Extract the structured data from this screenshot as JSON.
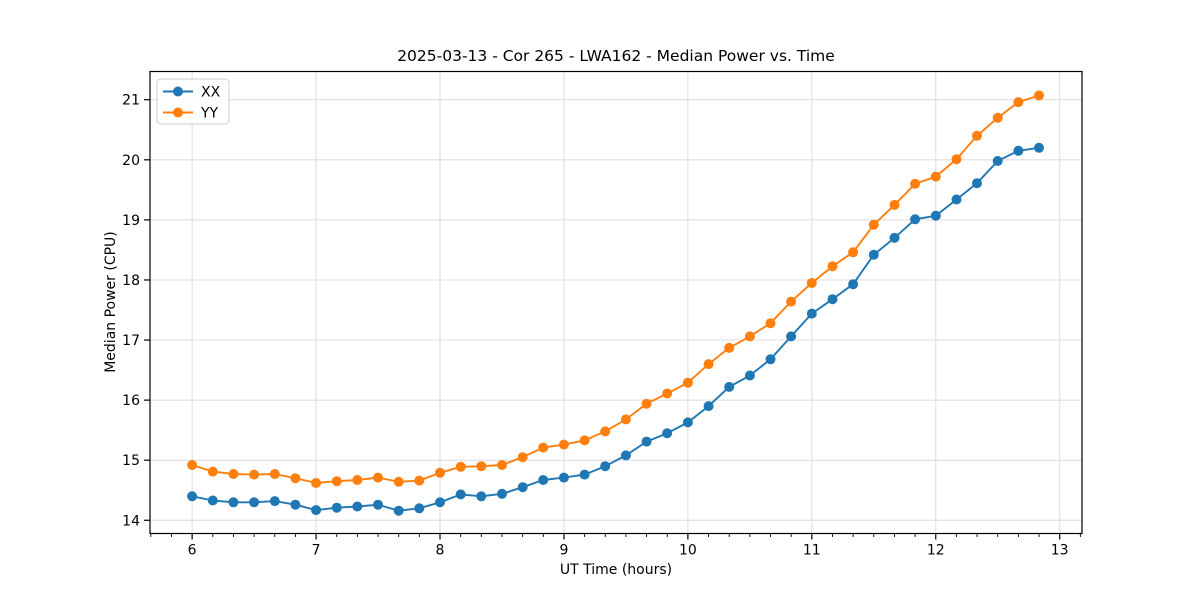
{
  "chart_data": {
    "type": "line",
    "title": "2025-03-13 - Cor 265 - LWA162 - Median Power vs. Time",
    "xlabel": "UT Time (hours)",
    "ylabel": "Median Power (CPU)",
    "xlim": [
      5.66,
      13.18
    ],
    "ylim": [
      13.78,
      21.47
    ],
    "xticks": [
      6,
      7,
      8,
      9,
      10,
      11,
      12,
      13
    ],
    "yticks": [
      14,
      15,
      16,
      17,
      18,
      19,
      20,
      21
    ],
    "x_minor_interval": 0.166667,
    "grid": true,
    "grid_color": "#dcdcdc",
    "legend_position": "upper left",
    "marker": "o",
    "x": [
      6.0,
      6.167,
      6.333,
      6.5,
      6.667,
      6.833,
      7.0,
      7.167,
      7.333,
      7.5,
      7.667,
      7.833,
      8.0,
      8.167,
      8.333,
      8.5,
      8.667,
      8.833,
      9.0,
      9.167,
      9.333,
      9.5,
      9.667,
      9.833,
      10.0,
      10.167,
      10.333,
      10.5,
      10.667,
      10.833,
      11.0,
      11.167,
      11.333,
      11.5,
      11.667,
      11.833,
      12.0,
      12.167,
      12.333,
      12.5,
      12.667,
      12.833
    ],
    "series": [
      {
        "name": "XX",
        "color": "#1f77b4",
        "values": [
          14.4,
          14.33,
          14.3,
          14.3,
          14.32,
          14.26,
          14.17,
          14.21,
          14.23,
          14.26,
          14.16,
          14.2,
          14.3,
          14.43,
          14.4,
          14.44,
          14.55,
          14.67,
          14.71,
          14.76,
          14.9,
          15.08,
          15.31,
          15.45,
          15.63,
          15.9,
          16.22,
          16.41,
          16.68,
          17.06,
          17.44,
          17.68,
          17.93,
          18.42,
          18.7,
          19.01,
          19.07,
          19.34,
          19.61,
          19.98,
          20.15,
          20.2
        ]
      },
      {
        "name": "YY",
        "color": "#ff7f0e",
        "values": [
          14.92,
          14.81,
          14.77,
          14.76,
          14.77,
          14.7,
          14.62,
          14.65,
          14.67,
          14.71,
          14.64,
          14.66,
          14.79,
          14.89,
          14.9,
          14.92,
          15.05,
          15.21,
          15.26,
          15.33,
          15.48,
          15.68,
          15.94,
          16.11,
          16.29,
          16.6,
          16.87,
          17.06,
          17.28,
          17.64,
          17.95,
          18.23,
          18.46,
          18.92,
          19.25,
          19.6,
          19.72,
          20.01,
          20.4,
          20.7,
          20.96,
          21.07
        ]
      }
    ]
  }
}
